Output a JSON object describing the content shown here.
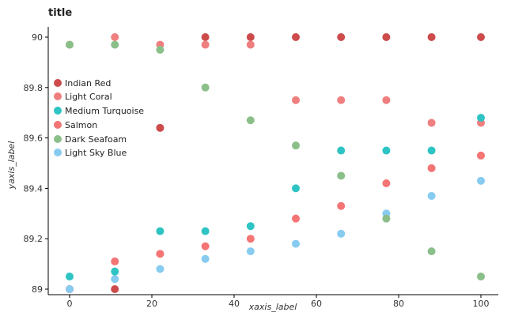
{
  "chart_data": {
    "type": "scatter",
    "title": "title",
    "xlabel": "xaxis_label",
    "ylabel": "yaxis_label",
    "xlim": [
      -3,
      105
    ],
    "ylim": [
      88.97,
      90.08
    ],
    "x_ticks": [
      "0",
      "20",
      "40",
      "60",
      "80",
      "100"
    ],
    "y_ticks": [
      "89",
      "89.2",
      "89.4",
      "89.6",
      "89.8",
      "90"
    ],
    "x_tick_values": [
      0,
      20,
      40,
      60,
      80,
      100
    ],
    "y_tick_values": [
      89,
      89.2,
      89.4,
      89.6,
      89.8,
      90
    ],
    "grid": false,
    "legend_position": "right",
    "x": [
      0,
      11,
      22,
      33,
      44,
      55,
      66,
      77,
      88,
      100
    ],
    "series": [
      {
        "name": "Indian Red",
        "color": "#cd4b4b",
        "values": [
          89.0,
          89.0,
          89.64,
          90.0,
          90.0,
          90.0,
          90.0,
          90.0,
          90.0,
          90.0
        ]
      },
      {
        "name": "Light Coral",
        "color": "#ef7f7f",
        "values": [
          89.97,
          90.0,
          89.97,
          89.97,
          89.97,
          89.75,
          89.75,
          89.75,
          89.66,
          89.66
        ]
      },
      {
        "name": "Medium Turquoise",
        "color": "#2ec4c4",
        "values": [
          89.05,
          89.07,
          89.23,
          89.23,
          89.25,
          89.4,
          89.55,
          89.55,
          89.55,
          89.68
        ]
      },
      {
        "name": "Salmon",
        "color": "#f57474",
        "values": [
          89.0,
          89.11,
          89.14,
          89.17,
          89.2,
          89.28,
          89.33,
          89.42,
          89.48,
          89.53
        ]
      },
      {
        "name": "Light Sky Blue",
        "color": "#87cbf0",
        "values": [
          89.0,
          89.04,
          89.08,
          89.12,
          89.15,
          89.18,
          89.22,
          89.3,
          89.37,
          89.43
        ]
      },
      {
        "name": "Dark Seafoam",
        "color": "#8bbf8a",
        "values": [
          89.97,
          89.97,
          89.95,
          89.8,
          89.67,
          89.57,
          89.45,
          89.28,
          89.15,
          89.05
        ]
      }
    ]
  }
}
